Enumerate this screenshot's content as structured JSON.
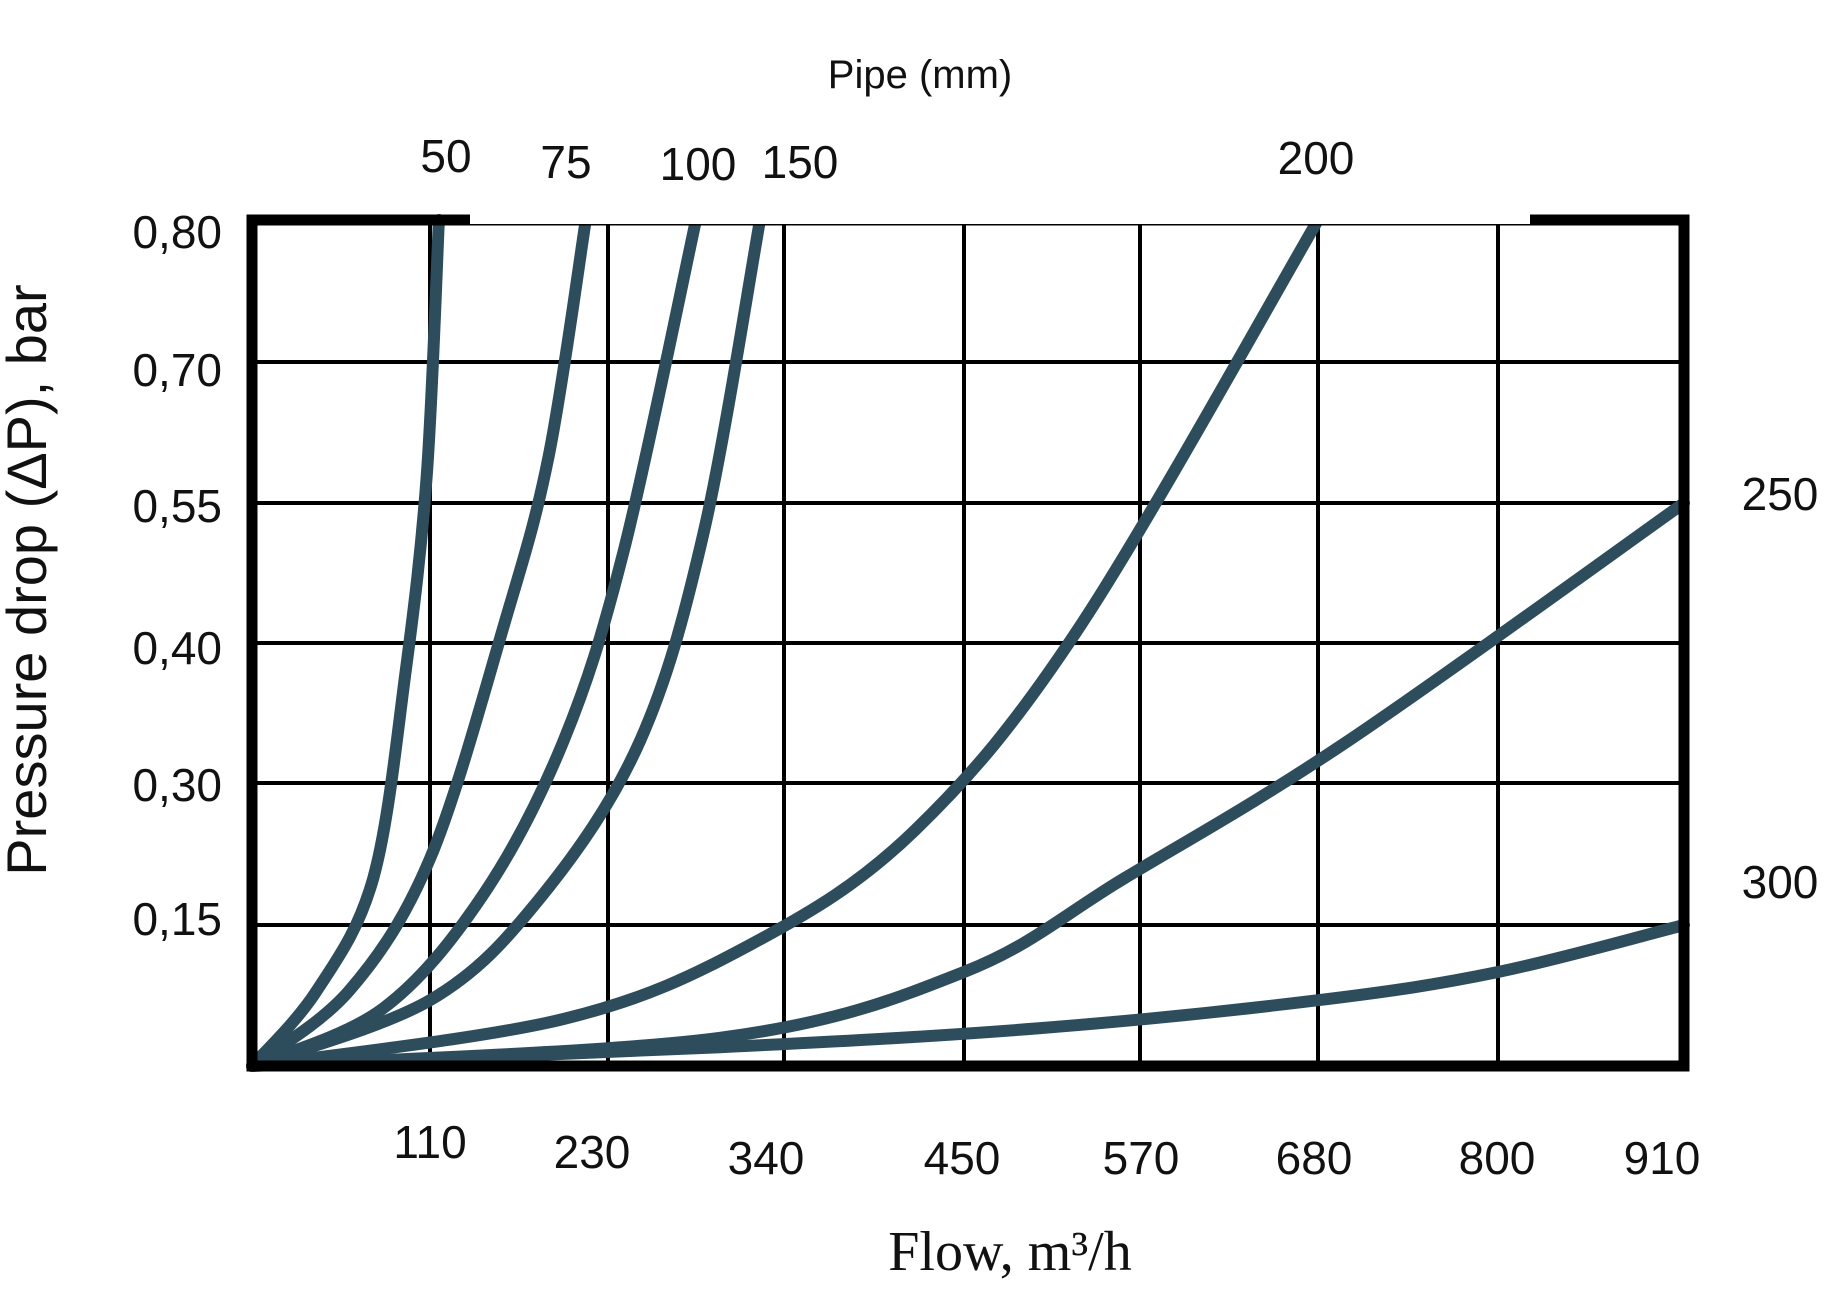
{
  "chart_data": {
    "type": "line",
    "title": "Pipe (mm)",
    "xlabel": "Flow, m³/h",
    "ylabel": "Pressure drop (ΔP), bar",
    "x_ticks": [
      "110",
      "230",
      "340",
      "450",
      "570",
      "680",
      "800",
      "910"
    ],
    "y_ticks": [
      "0,80",
      "0,70",
      "0,55",
      "0,40",
      "0,30",
      "0,15"
    ],
    "grid": true,
    "line_color": "#2e4d5c",
    "series": [
      {
        "name": "50",
        "label_position": "top",
        "points": [
          [
            0,
            0
          ],
          [
            40,
            0.08
          ],
          [
            75,
            0.2
          ],
          [
            95,
            0.38
          ],
          [
            108,
            0.58
          ],
          [
            116,
            0.8
          ]
        ]
      },
      {
        "name": "75",
        "label_position": "top",
        "points": [
          [
            0,
            0
          ],
          [
            60,
            0.08
          ],
          [
            110,
            0.22
          ],
          [
            160,
            0.42
          ],
          [
            190,
            0.6
          ],
          [
            215,
            0.8
          ]
        ]
      },
      {
        "name": "100",
        "label_position": "top",
        "points": [
          [
            0,
            0
          ],
          [
            80,
            0.06
          ],
          [
            145,
            0.18
          ],
          [
            200,
            0.33
          ],
          [
            240,
            0.5
          ],
          [
            285,
            0.8
          ]
        ]
      },
      {
        "name": "150",
        "label_position": "top",
        "points": [
          [
            0,
            0
          ],
          [
            110,
            0.07
          ],
          [
            185,
            0.18
          ],
          [
            250,
            0.33
          ],
          [
            290,
            0.52
          ],
          [
            325,
            0.8
          ]
        ]
      },
      {
        "name": "200",
        "label_position": "top",
        "points": [
          [
            0,
            0
          ],
          [
            200,
            0.05
          ],
          [
            320,
            0.13
          ],
          [
            420,
            0.25
          ],
          [
            530,
            0.42
          ],
          [
            680,
            0.8
          ]
        ]
      },
      {
        "name": "250",
        "label_position": "right",
        "points": [
          [
            0,
            0
          ],
          [
            300,
            0.03
          ],
          [
            450,
            0.1
          ],
          [
            560,
            0.2
          ],
          [
            700,
            0.33
          ],
          [
            910,
            0.55
          ]
        ]
      },
      {
        "name": "300",
        "label_position": "right",
        "points": [
          [
            0,
            0
          ],
          [
            300,
            0.02
          ],
          [
            500,
            0.04
          ],
          [
            680,
            0.07
          ],
          [
            800,
            0.1
          ],
          [
            910,
            0.15
          ]
        ]
      }
    ]
  }
}
